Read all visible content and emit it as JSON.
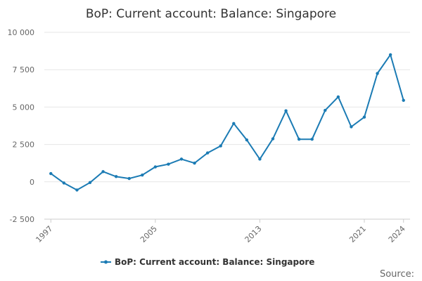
{
  "chart_data": {
    "type": "line",
    "title": "BoP: Current account: Balance: Singapore",
    "xlabel": "",
    "ylabel": "",
    "x_range": [
      1997,
      2024
    ],
    "ylim": [
      -2500,
      10000
    ],
    "y_ticks": [
      -2500,
      0,
      2500,
      5000,
      7500,
      10000
    ],
    "y_tick_labels": [
      "-2 500",
      "0",
      "2 500",
      "5 000",
      "7 500",
      "10 000"
    ],
    "x_tick_labels": [
      "1997",
      "2005",
      "2013",
      "2021",
      "2024"
    ],
    "x_tick_values": [
      1997,
      2005,
      2013,
      2021,
      2024
    ],
    "grid": true,
    "legend_position": "bottom-center",
    "series": [
      {
        "name": "BoP: Current account: Balance: Singapore",
        "color": "#1b7bb4",
        "x": [
          1997,
          1998,
          1999,
          2000,
          2001,
          2002,
          2003,
          2004,
          2005,
          2006,
          2007,
          2008,
          2009,
          2010,
          2011,
          2012,
          2013,
          2014,
          2015,
          2016,
          2017,
          2018,
          2019,
          2020,
          2021,
          2022,
          2023,
          2024
        ],
        "values": [
          550,
          -80,
          -550,
          -50,
          680,
          350,
          220,
          450,
          1000,
          1180,
          1520,
          1250,
          1930,
          2400,
          3900,
          2800,
          1520,
          2880,
          4750,
          2850,
          2850,
          4780,
          5680,
          3680,
          4330,
          7250,
          8500,
          5450
        ]
      }
    ]
  },
  "credit": "Source:"
}
